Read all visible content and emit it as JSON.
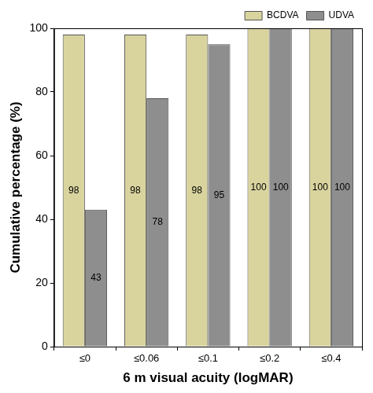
{
  "chart_data": {
    "type": "bar",
    "x_label": "6 m visual acuity (logMAR)",
    "y_label": "Cumulative percentage (%)",
    "categories": [
      "≤0",
      "≤0.06",
      "≤0.1",
      "≤0.2",
      "≤0.4"
    ],
    "series": [
      {
        "name": "BCDVA",
        "color": "#d9d49e",
        "values": [
          98,
          98,
          98,
          100,
          100
        ]
      },
      {
        "name": "UDVA",
        "color": "#8e8e8e",
        "values": [
          43,
          78,
          95,
          100,
          100
        ]
      }
    ],
    "ylim": [
      0,
      100
    ],
    "yticks": [
      0,
      20,
      40,
      60,
      80,
      100
    ],
    "grid": false,
    "legend": "top right",
    "data_labels": true
  }
}
